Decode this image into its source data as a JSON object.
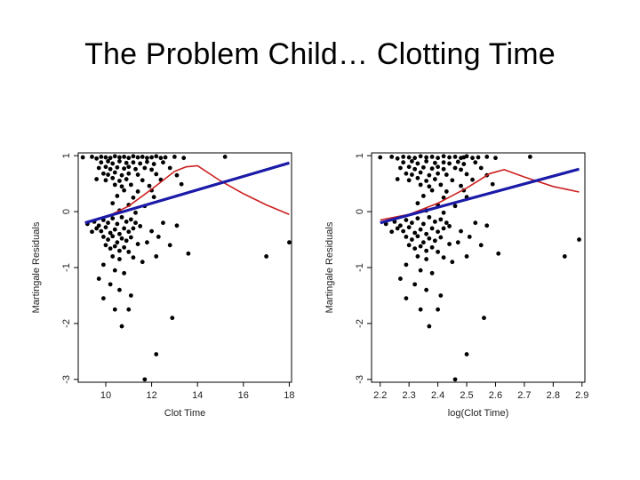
{
  "slide": {
    "title": "The Problem Child… Clotting Time"
  },
  "colors": {
    "points": "#000000",
    "smooth": "#cc2020",
    "linear_fit": "#1a1aa8",
    "frame": "#000000"
  },
  "chart_data": [
    {
      "type": "scatter",
      "xlabel": "Clot Time",
      "ylabel": "Martingale Residuals",
      "xlim": [
        8.8,
        18.1
      ],
      "ylim": [
        -3.05,
        1.05
      ],
      "x_ticks": [
        10,
        12,
        14,
        16,
        18
      ],
      "x_tick_labels": [
        "10",
        "12",
        "14",
        "16",
        "18"
      ],
      "y_ticks": [
        1,
        0,
        -1,
        -2,
        -3
      ],
      "y_tick_labels": [
        "1",
        "0",
        "-1",
        "-2",
        "-3"
      ],
      "points": [
        [
          9.0,
          0.97
        ],
        [
          9.4,
          0.98
        ],
        [
          9.6,
          0.95
        ],
        [
          9.8,
          0.98
        ],
        [
          10.0,
          0.97
        ],
        [
          10.2,
          0.96
        ],
        [
          10.4,
          0.99
        ],
        [
          10.6,
          0.97
        ],
        [
          10.8,
          0.98
        ],
        [
          11.0,
          0.96
        ],
        [
          11.2,
          0.99
        ],
        [
          11.4,
          0.97
        ],
        [
          11.6,
          0.98
        ],
        [
          11.8,
          0.96
        ],
        [
          12.0,
          0.97
        ],
        [
          12.2,
          0.99
        ],
        [
          12.4,
          0.96
        ],
        [
          12.6,
          0.97
        ],
        [
          13.0,
          0.98
        ],
        [
          13.4,
          0.96
        ],
        [
          15.2,
          0.98
        ],
        [
          9.8,
          0.88
        ],
        [
          10.1,
          0.9
        ],
        [
          10.3,
          0.86
        ],
        [
          10.6,
          0.9
        ],
        [
          10.9,
          0.87
        ],
        [
          11.2,
          0.88
        ],
        [
          11.5,
          0.86
        ],
        [
          11.8,
          0.89
        ],
        [
          12.1,
          0.85
        ],
        [
          12.5,
          0.88
        ],
        [
          9.7,
          0.78
        ],
        [
          10.0,
          0.8
        ],
        [
          10.2,
          0.76
        ],
        [
          10.5,
          0.79
        ],
        [
          10.8,
          0.77
        ],
        [
          11.0,
          0.8
        ],
        [
          11.3,
          0.76
        ],
        [
          11.7,
          0.78
        ],
        [
          12.0,
          0.75
        ],
        [
          12.8,
          0.78
        ],
        [
          9.9,
          0.68
        ],
        [
          10.1,
          0.66
        ],
        [
          10.4,
          0.7
        ],
        [
          10.7,
          0.65
        ],
        [
          11.0,
          0.68
        ],
        [
          11.4,
          0.66
        ],
        [
          12.2,
          0.67
        ],
        [
          13.1,
          0.65
        ],
        [
          9.6,
          0.58
        ],
        [
          10.0,
          0.56
        ],
        [
          10.3,
          0.6
        ],
        [
          10.6,
          0.55
        ],
        [
          10.9,
          0.58
        ],
        [
          11.6,
          0.56
        ],
        [
          12.4,
          0.57
        ],
        [
          10.4,
          0.48
        ],
        [
          10.7,
          0.45
        ],
        [
          11.1,
          0.48
        ],
        [
          11.9,
          0.46
        ],
        [
          13.3,
          0.49
        ],
        [
          10.8,
          0.38
        ],
        [
          11.4,
          0.36
        ],
        [
          12.0,
          0.38
        ],
        [
          10.5,
          0.28
        ],
        [
          11.2,
          0.25
        ],
        [
          12.1,
          0.26
        ],
        [
          10.3,
          0.15
        ],
        [
          11.0,
          0.12
        ],
        [
          11.7,
          0.1
        ],
        [
          10.6,
          0.02
        ],
        [
          11.3,
          -0.02
        ],
        [
          9.2,
          -0.22
        ],
        [
          9.5,
          -0.18
        ],
        [
          9.7,
          -0.25
        ],
        [
          9.9,
          -0.15
        ],
        [
          10.1,
          -0.2
        ],
        [
          10.3,
          -0.12
        ],
        [
          10.5,
          -0.22
        ],
        [
          10.7,
          -0.1
        ],
        [
          10.9,
          -0.18
        ],
        [
          11.1,
          -0.14
        ],
        [
          11.3,
          -0.2
        ],
        [
          9.6,
          -0.3
        ],
        [
          9.8,
          -0.35
        ],
        [
          10.0,
          -0.28
        ],
        [
          10.2,
          -0.38
        ],
        [
          10.4,
          -0.32
        ],
        [
          10.6,
          -0.4
        ],
        [
          10.8,
          -0.3
        ],
        [
          11.0,
          -0.36
        ],
        [
          11.2,
          -0.3
        ],
        [
          11.5,
          -0.26
        ],
        [
          9.4,
          -0.36
        ],
        [
          9.9,
          -0.45
        ],
        [
          10.1,
          -0.5
        ],
        [
          10.3,
          -0.44
        ],
        [
          10.5,
          -0.55
        ],
        [
          10.7,
          -0.48
        ],
        [
          10.9,
          -0.52
        ],
        [
          11.1,
          -0.46
        ],
        [
          11.4,
          -0.58
        ],
        [
          10.0,
          -0.6
        ],
        [
          10.2,
          -0.66
        ],
        [
          10.4,
          -0.62
        ],
        [
          10.6,
          -0.7
        ],
        [
          10.8,
          -0.64
        ],
        [
          11.0,
          -0.72
        ],
        [
          10.3,
          -0.8
        ],
        [
          10.6,
          -0.85
        ],
        [
          11.2,
          -0.82
        ],
        [
          11.6,
          -0.9
        ],
        [
          12.0,
          -0.35
        ],
        [
          12.3,
          -0.45
        ],
        [
          12.8,
          -0.6
        ],
        [
          13.1,
          -0.25
        ],
        [
          13.6,
          -0.75
        ],
        [
          12.5,
          -0.2
        ],
        [
          11.8,
          -0.55
        ],
        [
          12.2,
          -0.8
        ],
        [
          9.9,
          -0.95
        ],
        [
          10.4,
          -1.05
        ],
        [
          10.8,
          -1.1
        ],
        [
          9.7,
          -1.2
        ],
        [
          10.2,
          -1.3
        ],
        [
          10.6,
          -1.4
        ],
        [
          11.1,
          -1.5
        ],
        [
          9.9,
          -1.55
        ],
        [
          10.4,
          -1.75
        ],
        [
          11.0,
          -1.75
        ],
        [
          10.7,
          -2.05
        ],
        [
          12.9,
          -1.9
        ],
        [
          12.2,
          -2.55
        ],
        [
          11.7,
          -3.0
        ],
        [
          17.0,
          -0.8
        ],
        [
          18.0,
          -0.55
        ]
      ],
      "smooth_curve": [
        [
          9.1,
          -0.2
        ],
        [
          10.0,
          -0.1
        ],
        [
          11.0,
          0.1
        ],
        [
          12.0,
          0.4
        ],
        [
          13.0,
          0.72
        ],
        [
          13.5,
          0.8
        ],
        [
          14.0,
          0.82
        ],
        [
          15.0,
          0.55
        ],
        [
          16.0,
          0.32
        ],
        [
          17.0,
          0.12
        ],
        [
          18.0,
          -0.05
        ]
      ],
      "linear_fit": [
        [
          9.1,
          -0.2
        ],
        [
          18.0,
          0.87
        ]
      ]
    },
    {
      "type": "scatter",
      "xlabel": "log(Clot Time)",
      "ylabel": "Martingale Residuals",
      "xlim": [
        2.17,
        2.91
      ],
      "ylim": [
        -3.05,
        1.05
      ],
      "x_ticks": [
        2.2,
        2.3,
        2.4,
        2.5,
        2.6,
        2.7,
        2.8,
        2.9
      ],
      "x_tick_labels": [
        "2.2",
        "2.3",
        "2.4",
        "2.5",
        "2.6",
        "2.7",
        "2.8",
        "2.9"
      ],
      "y_ticks": [
        1,
        0,
        -1,
        -2,
        -3
      ],
      "y_tick_labels": [
        "1",
        "0",
        "-1",
        "-2",
        "-3"
      ],
      "points": [
        [
          2.2,
          0.97
        ],
        [
          2.24,
          0.98
        ],
        [
          2.26,
          0.95
        ],
        [
          2.28,
          0.98
        ],
        [
          2.3,
          0.97
        ],
        [
          2.32,
          0.96
        ],
        [
          2.34,
          0.99
        ],
        [
          2.36,
          0.97
        ],
        [
          2.38,
          0.98
        ],
        [
          2.4,
          0.96
        ],
        [
          2.42,
          0.99
        ],
        [
          2.44,
          0.97
        ],
        [
          2.46,
          0.98
        ],
        [
          2.48,
          0.96
        ],
        [
          2.49,
          0.97
        ],
        [
          2.5,
          0.99
        ],
        [
          2.52,
          0.96
        ],
        [
          2.54,
          0.97
        ],
        [
          2.57,
          0.98
        ],
        [
          2.6,
          0.96
        ],
        [
          2.72,
          0.98
        ],
        [
          2.28,
          0.88
        ],
        [
          2.31,
          0.9
        ],
        [
          2.33,
          0.86
        ],
        [
          2.36,
          0.9
        ],
        [
          2.39,
          0.87
        ],
        [
          2.42,
          0.88
        ],
        [
          2.44,
          0.86
        ],
        [
          2.47,
          0.89
        ],
        [
          2.49,
          0.85
        ],
        [
          2.53,
          0.88
        ],
        [
          2.27,
          0.78
        ],
        [
          2.3,
          0.8
        ],
        [
          2.32,
          0.76
        ],
        [
          2.35,
          0.79
        ],
        [
          2.38,
          0.77
        ],
        [
          2.4,
          0.8
        ],
        [
          2.42,
          0.76
        ],
        [
          2.46,
          0.78
        ],
        [
          2.48,
          0.75
        ],
        [
          2.55,
          0.78
        ],
        [
          2.29,
          0.68
        ],
        [
          2.31,
          0.66
        ],
        [
          2.34,
          0.7
        ],
        [
          2.37,
          0.65
        ],
        [
          2.4,
          0.68
        ],
        [
          2.43,
          0.66
        ],
        [
          2.5,
          0.67
        ],
        [
          2.57,
          0.65
        ],
        [
          2.26,
          0.58
        ],
        [
          2.3,
          0.56
        ],
        [
          2.33,
          0.6
        ],
        [
          2.36,
          0.55
        ],
        [
          2.39,
          0.58
        ],
        [
          2.45,
          0.56
        ],
        [
          2.52,
          0.57
        ],
        [
          2.34,
          0.48
        ],
        [
          2.37,
          0.45
        ],
        [
          2.41,
          0.48
        ],
        [
          2.48,
          0.46
        ],
        [
          2.59,
          0.49
        ],
        [
          2.38,
          0.38
        ],
        [
          2.43,
          0.36
        ],
        [
          2.49,
          0.38
        ],
        [
          2.35,
          0.28
        ],
        [
          2.42,
          0.25
        ],
        [
          2.5,
          0.26
        ],
        [
          2.33,
          0.15
        ],
        [
          2.4,
          0.12
        ],
        [
          2.46,
          0.1
        ],
        [
          2.36,
          0.02
        ],
        [
          2.42,
          -0.02
        ],
        [
          2.22,
          -0.22
        ],
        [
          2.25,
          -0.18
        ],
        [
          2.27,
          -0.25
        ],
        [
          2.29,
          -0.15
        ],
        [
          2.31,
          -0.2
        ],
        [
          2.33,
          -0.12
        ],
        [
          2.35,
          -0.22
        ],
        [
          2.37,
          -0.1
        ],
        [
          2.39,
          -0.18
        ],
        [
          2.41,
          -0.14
        ],
        [
          2.43,
          -0.2
        ],
        [
          2.26,
          -0.3
        ],
        [
          2.28,
          -0.35
        ],
        [
          2.3,
          -0.28
        ],
        [
          2.32,
          -0.38
        ],
        [
          2.34,
          -0.32
        ],
        [
          2.36,
          -0.4
        ],
        [
          2.38,
          -0.3
        ],
        [
          2.4,
          -0.36
        ],
        [
          2.42,
          -0.3
        ],
        [
          2.44,
          -0.26
        ],
        [
          2.24,
          -0.36
        ],
        [
          2.29,
          -0.45
        ],
        [
          2.31,
          -0.5
        ],
        [
          2.33,
          -0.44
        ],
        [
          2.35,
          -0.55
        ],
        [
          2.37,
          -0.48
        ],
        [
          2.39,
          -0.52
        ],
        [
          2.41,
          -0.46
        ],
        [
          2.44,
          -0.58
        ],
        [
          2.3,
          -0.6
        ],
        [
          2.32,
          -0.66
        ],
        [
          2.34,
          -0.62
        ],
        [
          2.36,
          -0.7
        ],
        [
          2.38,
          -0.64
        ],
        [
          2.4,
          -0.72
        ],
        [
          2.33,
          -0.8
        ],
        [
          2.36,
          -0.85
        ],
        [
          2.42,
          -0.82
        ],
        [
          2.45,
          -0.9
        ],
        [
          2.48,
          -0.35
        ],
        [
          2.51,
          -0.45
        ],
        [
          2.55,
          -0.6
        ],
        [
          2.57,
          -0.25
        ],
        [
          2.61,
          -0.75
        ],
        [
          2.53,
          -0.2
        ],
        [
          2.47,
          -0.55
        ],
        [
          2.5,
          -0.8
        ],
        [
          2.29,
          -0.95
        ],
        [
          2.34,
          -1.05
        ],
        [
          2.38,
          -1.1
        ],
        [
          2.27,
          -1.2
        ],
        [
          2.32,
          -1.3
        ],
        [
          2.36,
          -1.4
        ],
        [
          2.41,
          -1.5
        ],
        [
          2.29,
          -1.55
        ],
        [
          2.34,
          -1.75
        ],
        [
          2.4,
          -1.75
        ],
        [
          2.37,
          -2.05
        ],
        [
          2.56,
          -1.9
        ],
        [
          2.5,
          -2.55
        ],
        [
          2.46,
          -3.0
        ],
        [
          2.84,
          -0.8
        ],
        [
          2.89,
          -0.5
        ]
      ],
      "smooth_curve": [
        [
          2.2,
          -0.15
        ],
        [
          2.3,
          -0.05
        ],
        [
          2.4,
          0.15
        ],
        [
          2.5,
          0.42
        ],
        [
          2.58,
          0.68
        ],
        [
          2.63,
          0.75
        ],
        [
          2.7,
          0.62
        ],
        [
          2.8,
          0.45
        ],
        [
          2.89,
          0.35
        ]
      ],
      "linear_fit": [
        [
          2.2,
          -0.2
        ],
        [
          2.89,
          0.76
        ]
      ]
    }
  ]
}
